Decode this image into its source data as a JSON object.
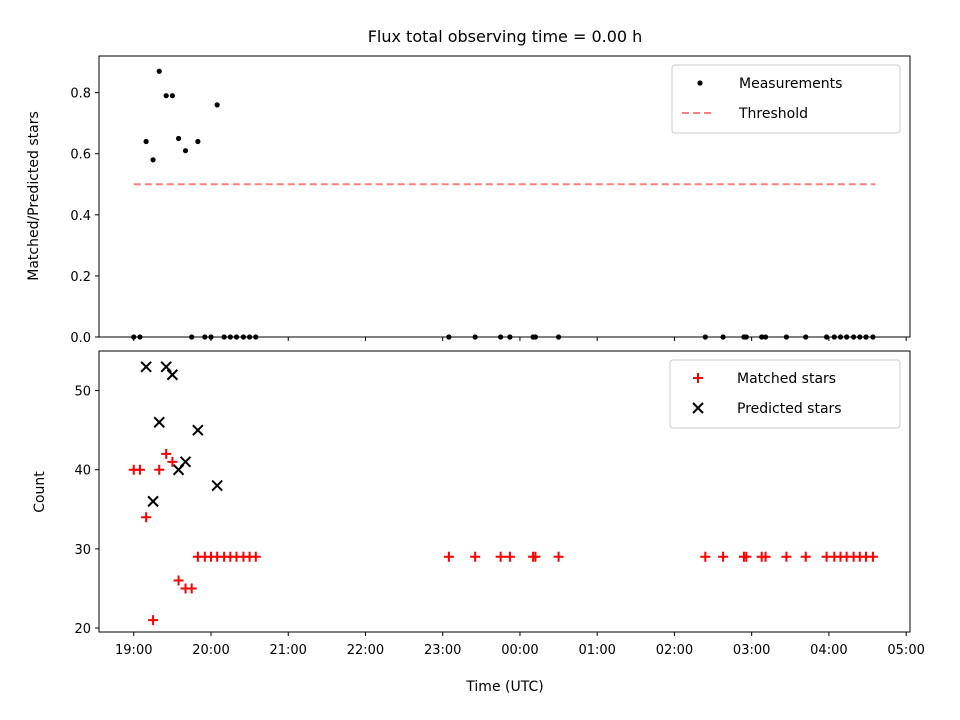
{
  "chart_data": {
    "title": "Flux total observing time = 0.00 h",
    "xlabel": "Time (UTC)",
    "x_tick_labels": [
      "19:00",
      "20:00",
      "21:00",
      "22:00",
      "23:00",
      "00:00",
      "01:00",
      "02:00",
      "03:00",
      "04:00",
      "05:00"
    ],
    "x_ticks_hours": [
      0,
      1,
      2,
      3,
      4,
      5,
      6,
      7,
      8,
      9,
      10
    ],
    "xlim_hours_after_1900": [
      -0.45,
      10.05
    ],
    "panels": [
      {
        "type": "scatter",
        "ylabel": "Matched/Predicted stars",
        "ylim": [
          0,
          0.92
        ],
        "yticks": [
          0.0,
          0.2,
          0.4,
          0.6,
          0.8
        ],
        "ytick_labels": [
          "0.0",
          "0.2",
          "0.4",
          "0.6",
          "0.8"
        ],
        "legend_position": "top-right",
        "series": [
          {
            "name": "Measurements",
            "marker": "dot",
            "color": "#000000",
            "points": [
              [
                0.0,
                0.0
              ],
              [
                0.08,
                0.0
              ],
              [
                0.16,
                0.64
              ],
              [
                0.25,
                0.58
              ],
              [
                0.33,
                0.87
              ],
              [
                0.42,
                0.79
              ],
              [
                0.5,
                0.79
              ],
              [
                0.58,
                0.65
              ],
              [
                0.67,
                0.61
              ],
              [
                0.75,
                0.0
              ],
              [
                0.83,
                0.64
              ],
              [
                0.92,
                0.0
              ],
              [
                1.0,
                0.0
              ],
              [
                1.08,
                0.76
              ],
              [
                1.17,
                0.0
              ],
              [
                1.25,
                0.0
              ],
              [
                1.33,
                0.0
              ],
              [
                1.42,
                0.0
              ],
              [
                1.5,
                0.0
              ],
              [
                1.58,
                0.0
              ],
              [
                4.08,
                0.0
              ],
              [
                4.42,
                0.0
              ],
              [
                4.75,
                0.0
              ],
              [
                4.87,
                0.0
              ],
              [
                5.17,
                0.0
              ],
              [
                5.2,
                0.0
              ],
              [
                5.5,
                0.0
              ],
              [
                7.4,
                0.0
              ],
              [
                7.63,
                0.0
              ],
              [
                7.9,
                0.0
              ],
              [
                7.93,
                0.0
              ],
              [
                8.13,
                0.0
              ],
              [
                8.18,
                0.0
              ],
              [
                8.45,
                0.0
              ],
              [
                8.7,
                0.0
              ],
              [
                8.97,
                0.0
              ],
              [
                9.07,
                0.0
              ],
              [
                9.15,
                0.0
              ],
              [
                9.23,
                0.0
              ],
              [
                9.32,
                0.0
              ],
              [
                9.4,
                0.0
              ],
              [
                9.48,
                0.0
              ],
              [
                9.57,
                0.0
              ]
            ]
          },
          {
            "name": "Threshold",
            "type": "line",
            "style": "dashed",
            "color": "#ff7f7f",
            "points": [
              [
                0.0,
                0.5
              ],
              [
                9.6,
                0.5
              ]
            ]
          }
        ]
      },
      {
        "type": "scatter",
        "ylabel": "Count",
        "ylim": [
          19.5,
          55.0
        ],
        "yticks": [
          20,
          30,
          40,
          50
        ],
        "ytick_labels": [
          "20",
          "30",
          "40",
          "50"
        ],
        "legend_position": "top-right",
        "series": [
          {
            "name": "Matched stars",
            "marker": "plus",
            "color": "#ff0000",
            "points": [
              [
                0.0,
                40
              ],
              [
                0.08,
                40
              ],
              [
                0.16,
                34
              ],
              [
                0.25,
                21
              ],
              [
                0.33,
                40
              ],
              [
                0.42,
                42
              ],
              [
                0.5,
                41
              ],
              [
                0.58,
                26
              ],
              [
                0.67,
                25
              ],
              [
                0.75,
                25
              ],
              [
                0.83,
                29
              ],
              [
                0.92,
                29
              ],
              [
                1.0,
                29
              ],
              [
                1.08,
                29
              ],
              [
                1.17,
                29
              ],
              [
                1.25,
                29
              ],
              [
                1.33,
                29
              ],
              [
                1.42,
                29
              ],
              [
                1.5,
                29
              ],
              [
                1.58,
                29
              ],
              [
                4.08,
                29
              ],
              [
                4.42,
                29
              ],
              [
                4.75,
                29
              ],
              [
                4.87,
                29
              ],
              [
                5.17,
                29
              ],
              [
                5.2,
                29
              ],
              [
                5.5,
                29
              ],
              [
                7.4,
                29
              ],
              [
                7.63,
                29
              ],
              [
                7.9,
                29
              ],
              [
                7.93,
                29
              ],
              [
                8.13,
                29
              ],
              [
                8.18,
                29
              ],
              [
                8.45,
                29
              ],
              [
                8.7,
                29
              ],
              [
                8.97,
                29
              ],
              [
                9.07,
                29
              ],
              [
                9.15,
                29
              ],
              [
                9.23,
                29
              ],
              [
                9.32,
                29
              ],
              [
                9.4,
                29
              ],
              [
                9.48,
                29
              ],
              [
                9.57,
                29
              ]
            ]
          },
          {
            "name": "Predicted stars",
            "marker": "x",
            "color": "#000000",
            "points": [
              [
                0.16,
                53
              ],
              [
                0.25,
                36
              ],
              [
                0.33,
                46
              ],
              [
                0.42,
                53
              ],
              [
                0.5,
                52
              ],
              [
                0.58,
                40
              ],
              [
                0.67,
                41
              ],
              [
                0.83,
                45
              ],
              [
                1.08,
                38
              ]
            ]
          }
        ]
      }
    ]
  }
}
